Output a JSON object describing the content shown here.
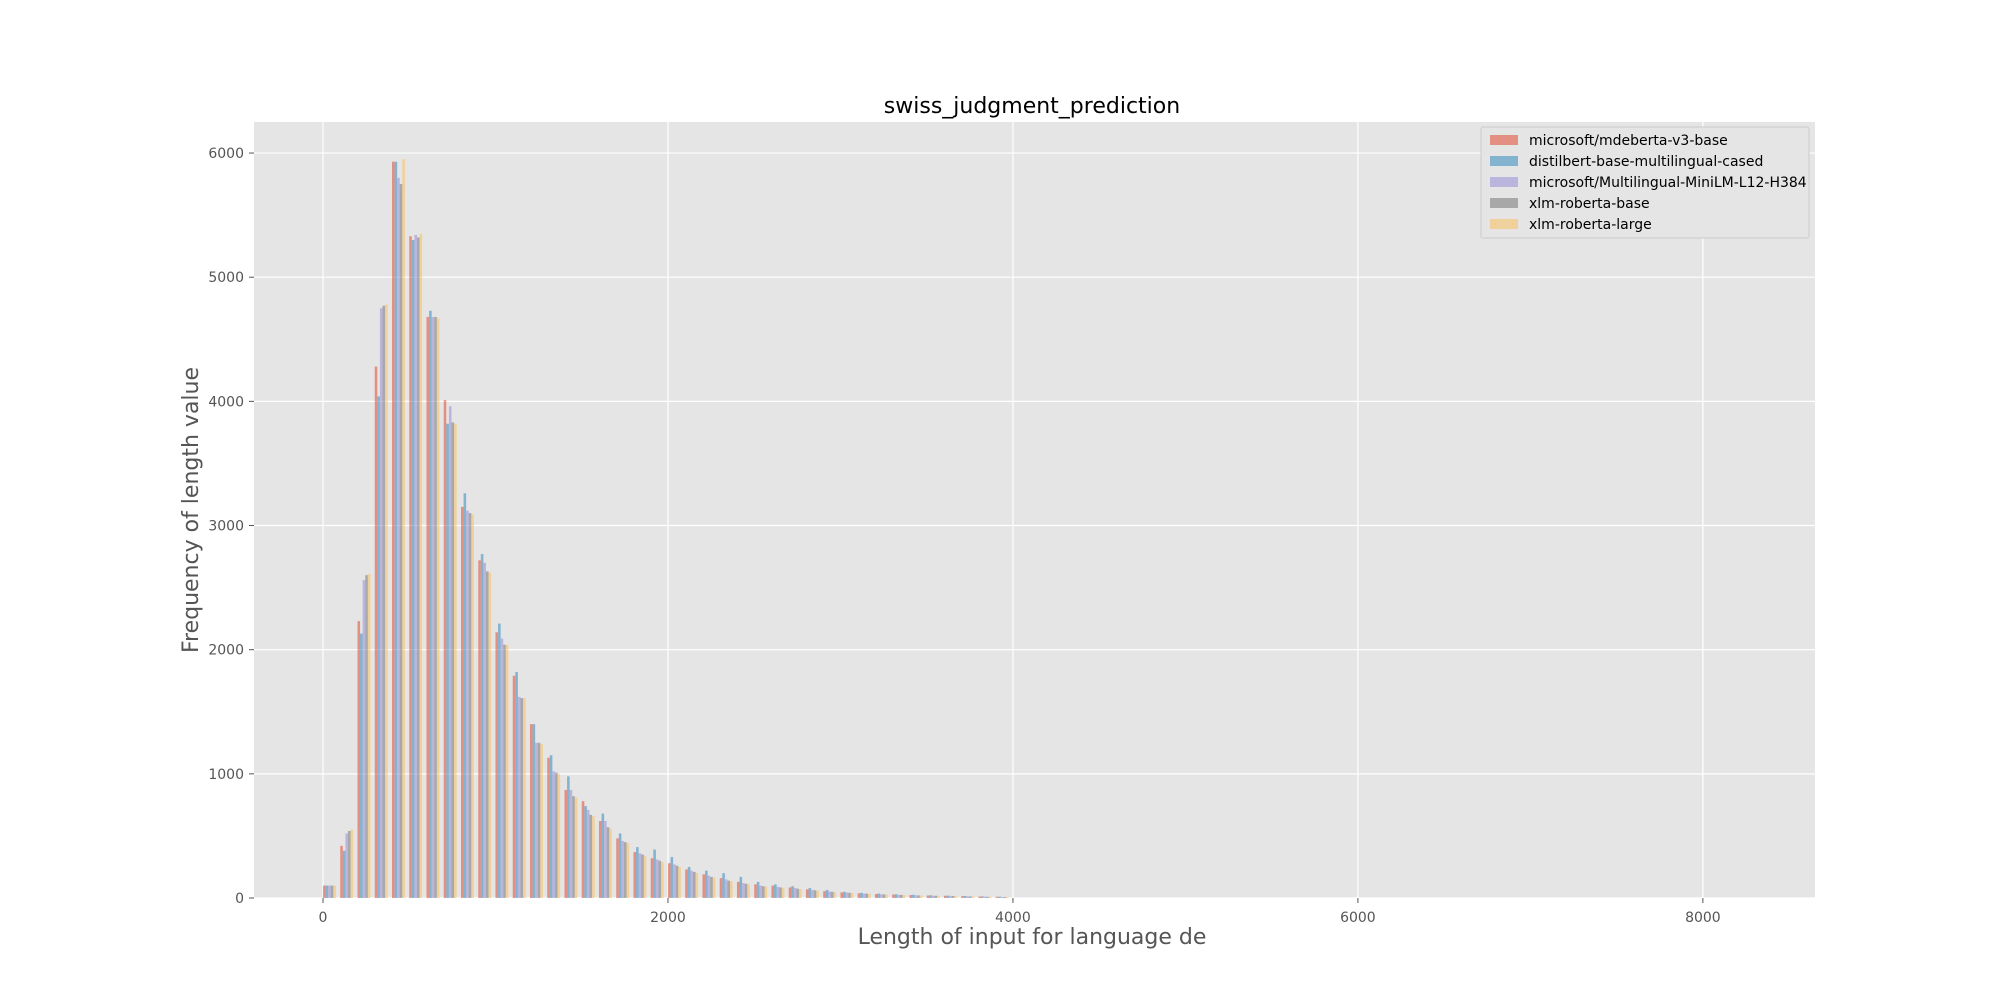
{
  "chart_data": {
    "type": "bar",
    "title": "swiss_judgment_prediction",
    "xlabel": "Length of input for language de",
    "ylabel": "Frequency of length value",
    "xlim": [
      -400,
      8650
    ],
    "ylim": [
      0,
      6250
    ],
    "xticks": [
      0,
      2000,
      4000,
      6000,
      8000
    ],
    "yticks": [
      0,
      1000,
      2000,
      3000,
      4000,
      5000,
      6000
    ],
    "grid": true,
    "legend_position": "top-right",
    "bin_width": 100,
    "bin_starts": [
      0,
      100,
      200,
      300,
      400,
      500,
      600,
      700,
      800,
      900,
      1000,
      1100,
      1200,
      1300,
      1400,
      1500,
      1600,
      1700,
      1800,
      1900,
      2000,
      2100,
      2200,
      2300,
      2400,
      2500,
      2600,
      2700,
      2800,
      2900,
      3000,
      3100,
      3200,
      3300,
      3400,
      3500,
      3600,
      3700,
      3800,
      3900
    ],
    "series": [
      {
        "name": "microsoft/mdeberta-v3-base",
        "color": "#E24A33",
        "values": [
          100,
          420,
          2230,
          4280,
          5930,
          5330,
          4680,
          4010,
          3150,
          2720,
          2140,
          1790,
          1400,
          1130,
          870,
          780,
          620,
          480,
          370,
          320,
          280,
          230,
          190,
          160,
          130,
          110,
          100,
          85,
          70,
          55,
          45,
          38,
          32,
          28,
          24,
          20,
          18,
          15,
          12,
          10
        ]
      },
      {
        "name": "distilbert-base-multilingual-cased",
        "color": "#348ABD",
        "values": [
          100,
          380,
          2130,
          4040,
          5930,
          5300,
          4730,
          3820,
          3260,
          2770,
          2210,
          1820,
          1400,
          1150,
          980,
          740,
          680,
          520,
          410,
          390,
          330,
          250,
          220,
          200,
          170,
          130,
          110,
          95,
          80,
          65,
          50,
          42,
          36,
          30,
          26,
          22,
          19,
          16,
          13,
          11
        ]
      },
      {
        "name": "microsoft/Multilingual-MiniLM-L12-H384",
        "color": "#988ED5",
        "values": [
          100,
          520,
          2560,
          4750,
          5800,
          5340,
          4680,
          3960,
          3120,
          2700,
          2090,
          1620,
          1250,
          1020,
          870,
          710,
          620,
          460,
          360,
          310,
          270,
          220,
          180,
          150,
          120,
          100,
          90,
          80,
          65,
          52,
          44,
          36,
          30,
          26,
          22,
          19,
          17,
          14,
          11,
          9
        ]
      },
      {
        "name": "xlm-roberta-base",
        "color": "#777777",
        "values": [
          100,
          540,
          2600,
          4770,
          5750,
          5320,
          4680,
          3830,
          3100,
          2630,
          2040,
          1610,
          1250,
          1010,
          820,
          670,
          570,
          450,
          350,
          300,
          260,
          210,
          170,
          140,
          115,
          95,
          85,
          75,
          62,
          50,
          42,
          35,
          29,
          25,
          21,
          18,
          16,
          13,
          10,
          8
        ]
      },
      {
        "name": "xlm-roberta-large",
        "color": "#FBC15E",
        "values": [
          100,
          550,
          2610,
          4780,
          5950,
          5350,
          4670,
          3820,
          3090,
          2620,
          2040,
          1610,
          1240,
          1000,
          810,
          660,
          560,
          440,
          340,
          290,
          250,
          200,
          165,
          135,
          110,
          92,
          82,
          72,
          60,
          48,
          40,
          33,
          28,
          24,
          20,
          17,
          15,
          12,
          10,
          8
        ]
      }
    ]
  }
}
